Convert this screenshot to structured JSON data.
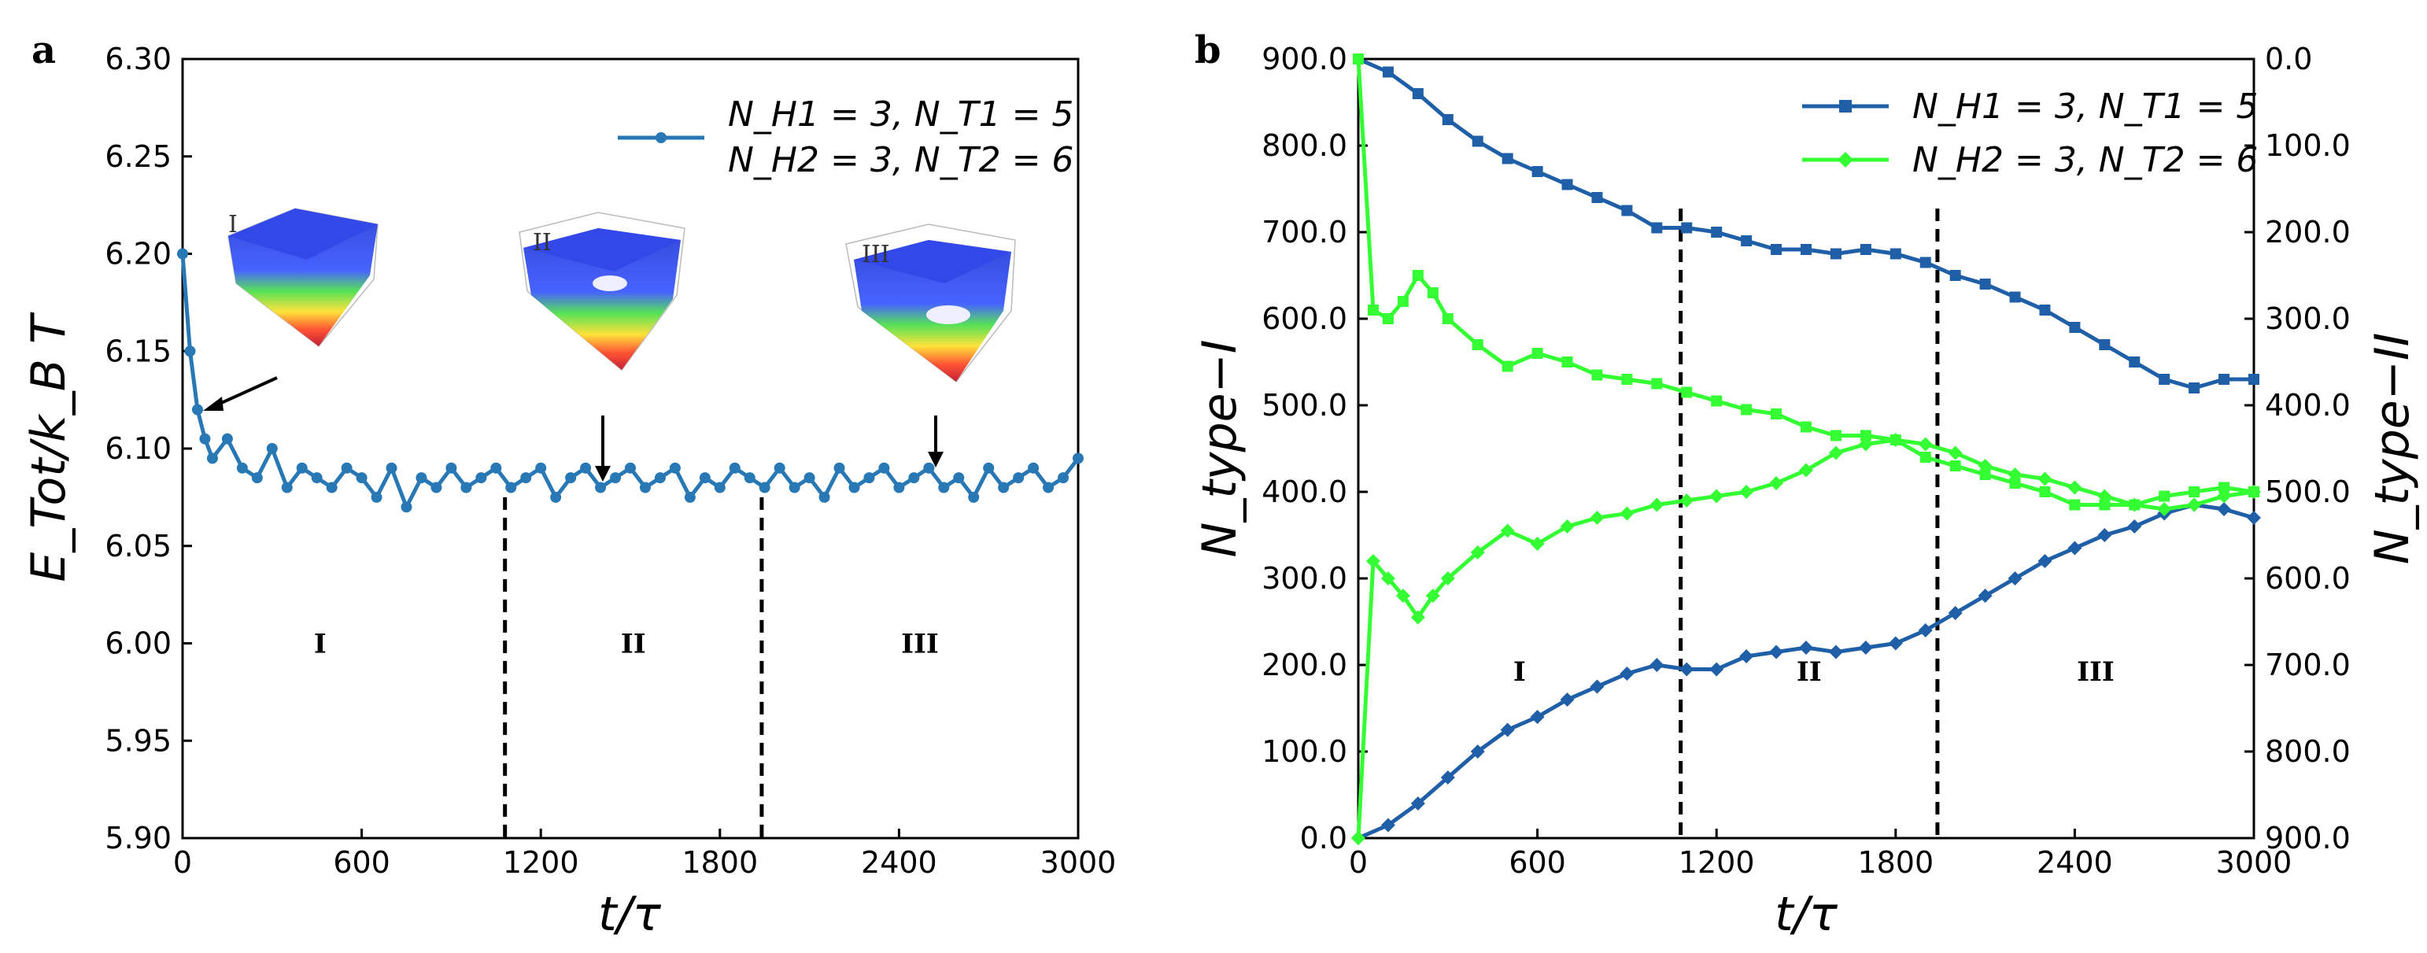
{
  "chart_data": [
    {
      "type": "line",
      "panel": "a",
      "xlabel": "t/τ",
      "ylabel": "E_Tot/k_B T",
      "xlim": [
        0,
        3000
      ],
      "ylim": [
        5.9,
        6.3
      ],
      "xticks": [
        "0",
        "600",
        "1200",
        "1800",
        "2400",
        "3000"
      ],
      "yticks": [
        "5.90",
        "5.95",
        "6.00",
        "6.05",
        "6.10",
        "6.15",
        "6.20",
        "6.25",
        "6.30"
      ],
      "legend": [
        "N_H1 = 3, N_T1 = 5",
        "N_H2 = 3, N_T2 = 6"
      ],
      "legend_position": "top-right",
      "color": "#2878b5",
      "series": [
        {
          "name": "E_Tot",
          "description": "starts at 6.20, drops to ~6.12 by t≈50, then fluctuates around 6.085",
          "x": [
            0,
            25,
            50,
            75,
            100,
            150,
            200,
            250,
            300,
            350,
            400,
            450,
            500,
            550,
            600,
            650,
            700,
            750,
            800,
            850,
            900,
            950,
            1000,
            1050,
            1100,
            1150,
            1200,
            1250,
            1300,
            1350,
            1400,
            1450,
            1500,
            1550,
            1600,
            1650,
            1700,
            1750,
            1800,
            1850,
            1900,
            1950,
            2000,
            2050,
            2100,
            2150,
            2200,
            2250,
            2300,
            2350,
            2400,
            2450,
            2500,
            2550,
            2600,
            2650,
            2700,
            2750,
            2800,
            2850,
            2900,
            2950,
            3000
          ],
          "y": [
            6.2,
            6.15,
            6.12,
            6.105,
            6.095,
            6.105,
            6.09,
            6.085,
            6.1,
            6.08,
            6.09,
            6.085,
            6.08,
            6.09,
            6.085,
            6.075,
            6.09,
            6.07,
            6.085,
            6.08,
            6.09,
            6.08,
            6.085,
            6.09,
            6.08,
            6.085,
            6.09,
            6.075,
            6.085,
            6.09,
            6.08,
            6.085,
            6.09,
            6.08,
            6.085,
            6.09,
            6.075,
            6.085,
            6.08,
            6.09,
            6.085,
            6.08,
            6.09,
            6.08,
            6.085,
            6.075,
            6.09,
            6.08,
            6.085,
            6.09,
            6.08,
            6.085,
            6.09,
            6.08,
            6.085,
            6.075,
            6.09,
            6.08,
            6.085,
            6.09,
            6.08,
            6.085,
            6.095
          ]
        }
      ],
      "dividers": [
        1080,
        1940
      ],
      "regions": [
        "I",
        "II",
        "III"
      ],
      "insets": [
        {
          "label": "I",
          "arrow_to": [
            50,
            6.12
          ]
        },
        {
          "label": "II",
          "arrow_to": [
            1400,
            6.085
          ]
        },
        {
          "label": "III",
          "arrow_to": [
            2500,
            6.095
          ]
        }
      ]
    },
    {
      "type": "line",
      "panel": "b",
      "xlabel": "t/τ",
      "ylabel": "N_type−I",
      "ylabel_right": "N_type−II",
      "xlim": [
        0,
        3000
      ],
      "ylim": [
        0,
        900
      ],
      "ylim_right": [
        900,
        0
      ],
      "xticks": [
        "0",
        "600",
        "1200",
        "1800",
        "2400",
        "3000"
      ],
      "yticks": [
        "0.0",
        "100.0",
        "200.0",
        "300.0",
        "400.0",
        "500.0",
        "600.0",
        "700.0",
        "800.0",
        "900.0"
      ],
      "yticks_right": [
        "900.0",
        "800.0",
        "700.0",
        "600.0",
        "500.0",
        "400.0",
        "300.0",
        "200.0",
        "100.0",
        "0.0"
      ],
      "legend": [
        "N_H1 = 3, N_T1 = 5",
        "N_H2 = 3, N_T2 = 6"
      ],
      "legend_position": "top-right",
      "series": [
        {
          "name": "N_H1 = 3, N_T1 = 5 (type-I, decreasing)",
          "color": "#1f5fa8",
          "marker": "square",
          "x": [
            0,
            100,
            200,
            300,
            400,
            500,
            600,
            700,
            800,
            900,
            1000,
            1100,
            1200,
            1300,
            1400,
            1500,
            1600,
            1700,
            1800,
            1900,
            2000,
            2100,
            2200,
            2300,
            2400,
            2500,
            2600,
            2700,
            2800,
            2900,
            3000
          ],
          "y": [
            900,
            885,
            860,
            830,
            805,
            785,
            770,
            755,
            740,
            725,
            705,
            705,
            700,
            690,
            680,
            680,
            675,
            680,
            675,
            665,
            650,
            640,
            625,
            610,
            590,
            570,
            550,
            530,
            520,
            530,
            530
          ]
        },
        {
          "name": "N_H1 = 3, N_T1 = 5 (type-II, increasing)",
          "color": "#1f5fa8",
          "marker": "diamond",
          "x": [
            0,
            100,
            200,
            300,
            400,
            500,
            600,
            700,
            800,
            900,
            1000,
            1100,
            1200,
            1300,
            1400,
            1500,
            1600,
            1700,
            1800,
            1900,
            2000,
            2100,
            2200,
            2300,
            2400,
            2500,
            2600,
            2700,
            2800,
            2900,
            3000
          ],
          "y": [
            0,
            15,
            40,
            70,
            100,
            125,
            140,
            160,
            175,
            190,
            200,
            195,
            195,
            210,
            215,
            220,
            215,
            220,
            225,
            240,
            260,
            280,
            300,
            320,
            335,
            350,
            360,
            375,
            385,
            380,
            370
          ]
        },
        {
          "name": "N_H2 = 3, N_T2 = 6 (type-I, upper)",
          "color": "#33ff33",
          "marker": "square",
          "x": [
            0,
            50,
            100,
            150,
            200,
            250,
            300,
            400,
            500,
            600,
            700,
            800,
            900,
            1000,
            1100,
            1200,
            1300,
            1400,
            1500,
            1600,
            1700,
            1800,
            1900,
            2000,
            2100,
            2200,
            2300,
            2400,
            2500,
            2600,
            2700,
            2800,
            2900,
            3000
          ],
          "y": [
            900,
            610,
            600,
            620,
            650,
            630,
            600,
            570,
            545,
            560,
            550,
            535,
            530,
            525,
            515,
            505,
            495,
            490,
            475,
            465,
            465,
            460,
            440,
            430,
            420,
            410,
            400,
            385,
            385,
            385,
            395,
            400,
            405,
            400
          ]
        },
        {
          "name": "N_H2 = 3, N_T2 = 6 (type-II, lower)",
          "color": "#33ff33",
          "marker": "diamond",
          "x": [
            0,
            50,
            100,
            150,
            200,
            250,
            300,
            400,
            500,
            600,
            700,
            800,
            900,
            1000,
            1100,
            1200,
            1300,
            1400,
            1500,
            1600,
            1700,
            1800,
            1900,
            2000,
            2100,
            2200,
            2300,
            2400,
            2500,
            2600,
            2700,
            2800,
            2900,
            3000
          ],
          "y": [
            0,
            320,
            300,
            280,
            255,
            280,
            300,
            330,
            355,
            340,
            360,
            370,
            375,
            385,
            390,
            395,
            400,
            410,
            425,
            445,
            455,
            460,
            455,
            445,
            430,
            420,
            415,
            405,
            395,
            385,
            380,
            385,
            395,
            400
          ]
        }
      ],
      "dividers": [
        1080,
        1940
      ],
      "regions": [
        "I",
        "II",
        "III"
      ]
    }
  ],
  "figure": {
    "panel_a_letter": "a",
    "panel_b_letter": "b"
  }
}
